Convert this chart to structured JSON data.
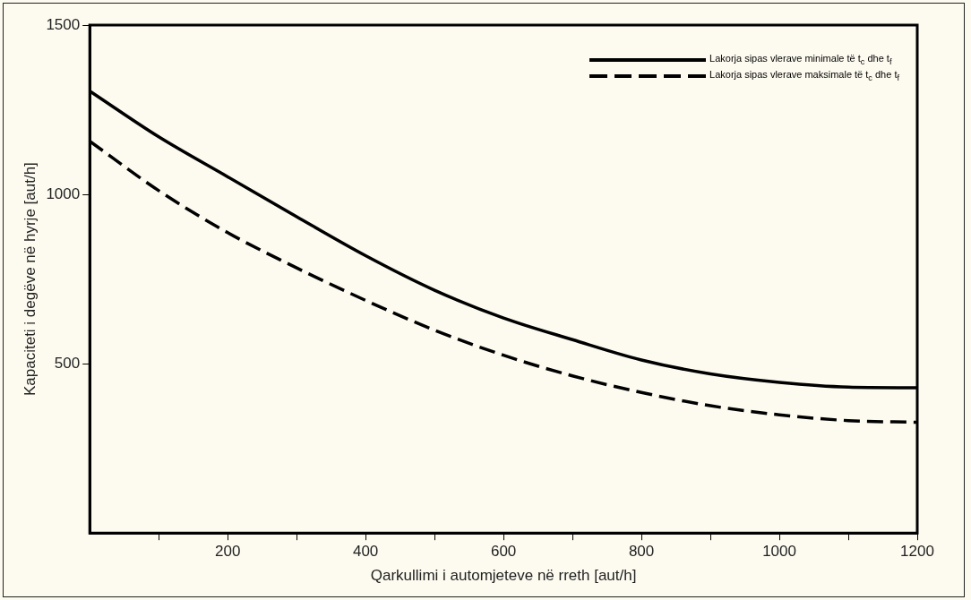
{
  "chart_data": {
    "type": "line",
    "xlabel": "Qarkullimi i automjeteve në rreth [aut/h]",
    "ylabel": "Kapaciteti i degëve në hyrje [aut/h]",
    "x": [
      0,
      100,
      200,
      300,
      400,
      500,
      600,
      700,
      800,
      900,
      1000,
      1100,
      1200
    ],
    "xlim": [
      0,
      1200
    ],
    "xticks": [
      {
        "value": 100,
        "label": null
      },
      200,
      {
        "value": 300,
        "label": null
      },
      400,
      {
        "value": 500,
        "label": null
      },
      600,
      {
        "value": 700,
        "label": null
      },
      800,
      {
        "value": 900,
        "label": null
      },
      1000,
      {
        "value": 1100,
        "label": null
      },
      1200
    ],
    "ylim": [
      0,
      1500
    ],
    "yticks": [
      500,
      1000,
      1500
    ],
    "grid": false,
    "legend": "top right",
    "marker": "none",
    "series": [
      {
        "name": "Lakorja sipas vlerave minimale të t$_{c}$ dhe t$_{f}$",
        "color": "#000000",
        "line_style": "solid",
        "values": [
          1305,
          1170,
          1052,
          934,
          819,
          717,
          635,
          571,
          511,
          470,
          445,
          431,
          429
        ]
      },
      {
        "name": "Lakorja sipas vlerave maksimale të t$_{c}$ dhe t$_{f}$",
        "color": "#000000",
        "line_style": "dashed",
        "values": [
          1157,
          1011,
          887,
          783,
          687,
          599,
          525,
          464,
          415,
          376,
          349,
          332,
          327
        ]
      }
    ]
  }
}
